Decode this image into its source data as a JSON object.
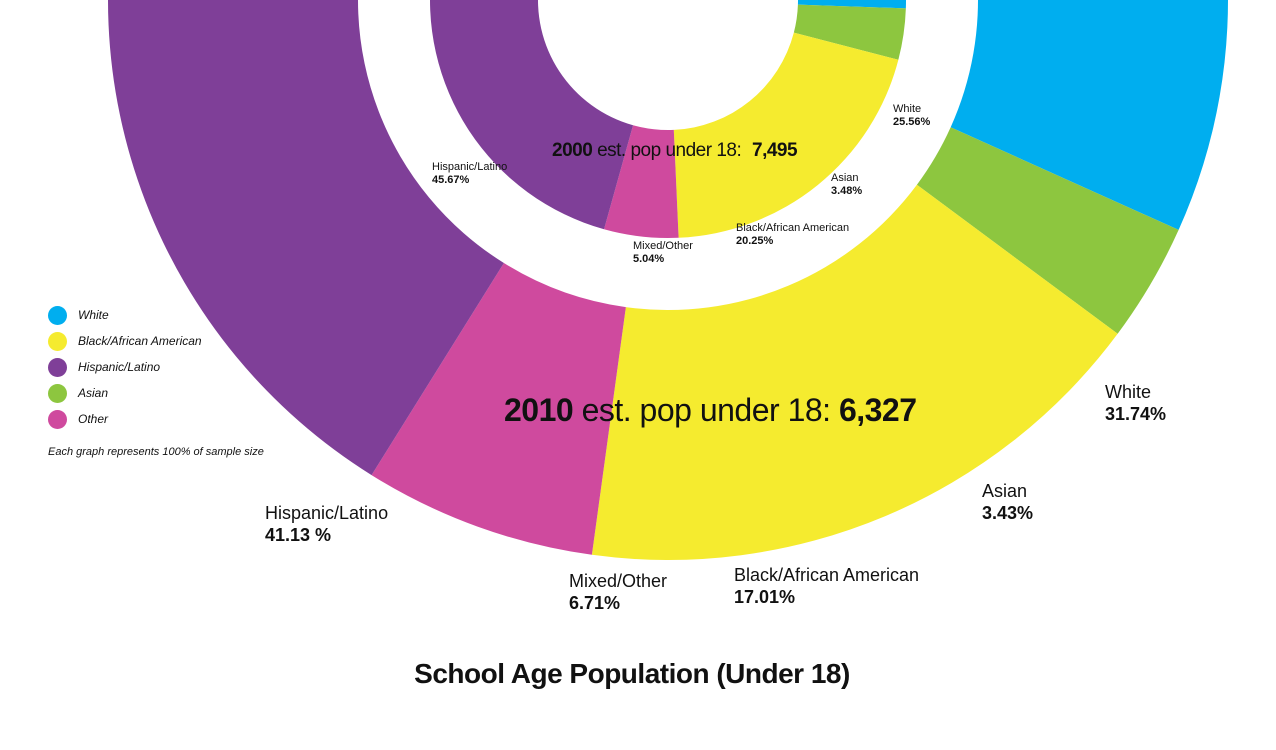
{
  "title": "School Age Population (Under 18)",
  "colors": {
    "White": "#00aeef",
    "Black/African American": "#f5eb2f",
    "Hispanic/Latino": "#7f3f98",
    "Asian": "#8dc63f",
    "Mixed/Other": "#cf4a9e"
  },
  "legend": {
    "items": [
      {
        "label": "White",
        "color": "#00aeef"
      },
      {
        "label": "Black/African American",
        "color": "#f5eb2f"
      },
      {
        "label": "Hispanic/Latino",
        "color": "#7f3f98"
      },
      {
        "label": "Asian",
        "color": "#8dc63f"
      },
      {
        "label": "Other",
        "color": "#cf4a9e"
      }
    ],
    "note": "Each graph represents 100% of sample size"
  },
  "chart_data": [
    {
      "type": "pie",
      "year": "2010",
      "center_label": {
        "year": "2010",
        "text": "est. pop under 18:",
        "value": "6,327"
      },
      "slices": [
        {
          "name": "White",
          "value": 31.74,
          "label": "31.74%"
        },
        {
          "name": "Black/African American",
          "value": 17.01,
          "label": "17.01%"
        },
        {
          "name": "Hispanic/Latino",
          "value": 41.13,
          "label": "41.13 %"
        },
        {
          "name": "Asian",
          "value": 3.43,
          "label": "3.43%"
        },
        {
          "name": "Mixed/Other",
          "value": 6.71,
          "label": "6.71%"
        }
      ]
    },
    {
      "type": "pie",
      "year": "2000",
      "center_label": {
        "year": "2000",
        "text": "est. pop under 18:",
        "value": "7,495"
      },
      "slices": [
        {
          "name": "White",
          "value": 25.56,
          "label": "25.56%"
        },
        {
          "name": "Black/African American",
          "value": 20.25,
          "label": "20.25%"
        },
        {
          "name": "Hispanic/Latino",
          "value": 45.67,
          "label": "45.67%"
        },
        {
          "name": "Asian",
          "value": 3.48,
          "label": "3.48%"
        },
        {
          "name": "Mixed/Other",
          "value": 5.04,
          "label": "5.04%"
        }
      ]
    }
  ]
}
